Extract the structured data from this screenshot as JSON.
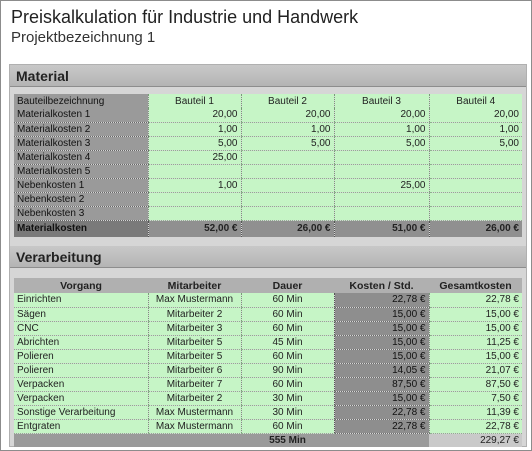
{
  "header": {
    "title": "Preiskalkulation für Industrie und Handwerk",
    "subtitle": "Projektbezeichnung 1"
  },
  "material": {
    "section_title": "Material",
    "columns": [
      "Bauteilbezeichnung",
      "Bauteil 1",
      "Bauteil 2",
      "Bauteil 3",
      "Bauteil 4"
    ],
    "rows": [
      {
        "label": "Materialkosten 1",
        "values": [
          "20,00",
          "20,00",
          "20,00",
          "20,00"
        ]
      },
      {
        "label": "Materialkosten 2",
        "values": [
          "1,00",
          "1,00",
          "1,00",
          "1,00"
        ]
      },
      {
        "label": "Materialkosten 3",
        "values": [
          "5,00",
          "5,00",
          "5,00",
          "5,00"
        ]
      },
      {
        "label": "Materialkosten 4",
        "values": [
          "25,00",
          "",
          "",
          ""
        ]
      },
      {
        "label": "Materialkosten 5",
        "values": [
          "",
          "",
          "",
          ""
        ]
      },
      {
        "label": "Nebenkosten 1",
        "values": [
          "1,00",
          "",
          "25,00",
          ""
        ]
      },
      {
        "label": "Nebenkosten 2",
        "values": [
          "",
          "",
          "",
          ""
        ]
      },
      {
        "label": "Nebenkosten 3",
        "values": [
          "",
          "",
          "",
          ""
        ]
      }
    ],
    "total": {
      "label": "Materialkosten",
      "values": [
        "52,00 €",
        "26,00 €",
        "51,00 €",
        "26,00 €"
      ]
    }
  },
  "verarbeitung": {
    "section_title": "Verarbeitung",
    "columns": [
      "Vorgang",
      "Mitarbeiter",
      "Dauer",
      "Kosten / Std.",
      "Gesamtkosten"
    ],
    "rows": [
      {
        "vorgang": "Einrichten",
        "mitarbeiter": "Max Mustermann",
        "dauer": "60 Min",
        "kosten": "22,78 €",
        "gesamt": "22,78 €"
      },
      {
        "vorgang": "Sägen",
        "mitarbeiter": "Mitarbeiter 2",
        "dauer": "60 Min",
        "kosten": "15,00 €",
        "gesamt": "15,00 €"
      },
      {
        "vorgang": "CNC",
        "mitarbeiter": "Mitarbeiter 3",
        "dauer": "60 Min",
        "kosten": "15,00 €",
        "gesamt": "15,00 €"
      },
      {
        "vorgang": "Abrichten",
        "mitarbeiter": "Mitarbeiter 5",
        "dauer": "45 Min",
        "kosten": "15,00 €",
        "gesamt": "11,25 €"
      },
      {
        "vorgang": "Polieren",
        "mitarbeiter": "Mitarbeiter 5",
        "dauer": "60 Min",
        "kosten": "15,00 €",
        "gesamt": "15,00 €"
      },
      {
        "vorgang": "Polieren",
        "mitarbeiter": "Mitarbeiter 6",
        "dauer": "90 Min",
        "kosten": "14,05 €",
        "gesamt": "21,07 €"
      },
      {
        "vorgang": "Verpacken",
        "mitarbeiter": "Mitarbeiter 7",
        "dauer": "60 Min",
        "kosten": "87,50 €",
        "gesamt": "87,50 €"
      },
      {
        "vorgang": "Verpacken",
        "mitarbeiter": "Mitarbeiter 2",
        "dauer": "30 Min",
        "kosten": "15,00 €",
        "gesamt": "7,50 €"
      },
      {
        "vorgang": "Sonstige Verarbeitung",
        "mitarbeiter": "Max Mustermann",
        "dauer": "30 Min",
        "kosten": "22,78 €",
        "gesamt": "11,39 €"
      },
      {
        "vorgang": "Entgraten",
        "mitarbeiter": "Max Mustermann",
        "dauer": "60 Min",
        "kosten": "22,78 €",
        "gesamt": "22,78 €"
      }
    ],
    "total": {
      "dauer": "555 Min",
      "gesamt": "229,27 €"
    }
  }
}
